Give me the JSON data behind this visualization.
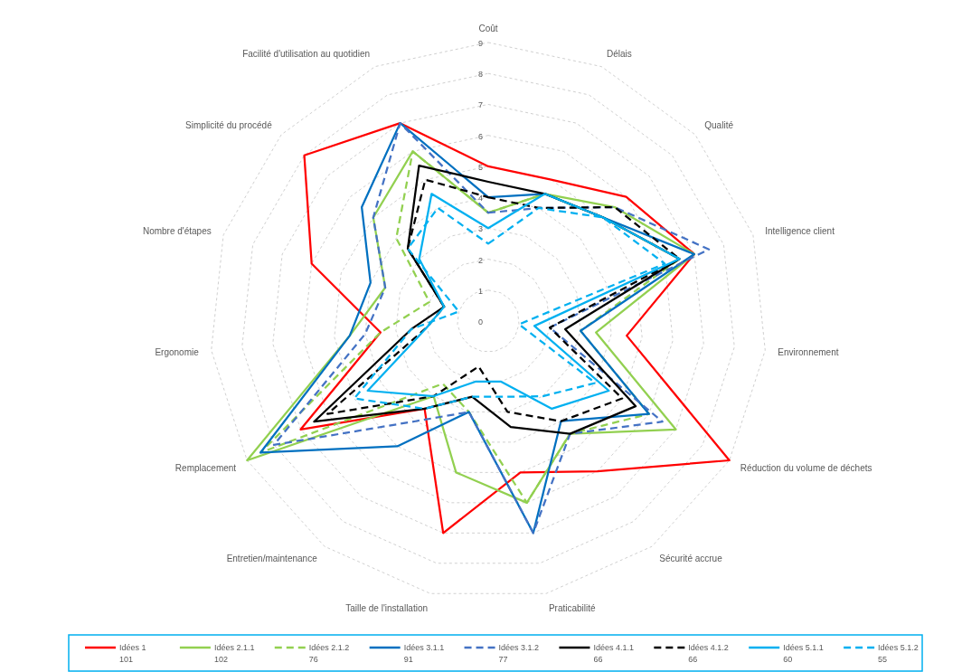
{
  "chart_data": {
    "type": "radar",
    "categories": [
      "Coût",
      "Délais",
      "Qualité",
      "Intelligence client",
      "Environnement",
      "Réduction du volume de déchets",
      "Sécurité accrue",
      "Praticabilité",
      "Taille de l'installation",
      "Entretien/maintenance",
      "Remplacement",
      "Ergonomie",
      "Nombre d'étapes",
      "Simplicité du procédé",
      "Facilité d'utilisation au quotidien"
    ],
    "ylim": [
      0,
      9
    ],
    "yticks": [
      0,
      1,
      2,
      3,
      4,
      5,
      6,
      7,
      8,
      9
    ],
    "grid": true,
    "legend": "bottom",
    "marker": "none",
    "line_style": "solid",
    "series": [
      {
        "name": "Idées 1\n101",
        "color": "#ff0000",
        "values": [
          5,
          5,
          6,
          7,
          4.5,
          9,
          6,
          5,
          7,
          3.5,
          7,
          3.5,
          6,
          8,
          7
        ]
      },
      {
        "name": "Idées 2.1.1\n102",
        "color": "#92d050",
        "values": [
          3.5,
          4.5,
          5.5,
          7,
          3.5,
          7,
          4.5,
          6,
          5,
          3,
          9,
          4.5,
          3.5,
          5,
          6
        ]
      },
      {
        "name": "Idées 2.1.2\n76",
        "color": "#92d050",
        "line_style": "dashed",
        "values": [
          3.5,
          4.5,
          5,
          6.5,
          3,
          6,
          4.5,
          6,
          3,
          2.5,
          8.5,
          3.5,
          2,
          4,
          6
        ]
      },
      {
        "name": "Idées 3.1.1\n91",
        "color": "#0070c0",
        "values": [
          4,
          4.5,
          5,
          7,
          3,
          6,
          4,
          7,
          3,
          5,
          8.5,
          4.5,
          4,
          5.5,
          7
        ]
      },
      {
        "name": "Idées 3.1.2\n77",
        "color": "#4472c4",
        "line_style": "dashed",
        "values": [
          3.5,
          4,
          5.5,
          7.5,
          2,
          6.5,
          4.5,
          7,
          3,
          4,
          8,
          4,
          3.5,
          5,
          7
        ]
      },
      {
        "name": "Idées 4.1.1\n66",
        "color": "#000000",
        "values": [
          4.5,
          4.5,
          5,
          6.5,
          2.5,
          5.5,
          4.5,
          3.5,
          2.5,
          3.5,
          6.5,
          2.5,
          1.5,
          3.5,
          5.5
        ]
      },
      {
        "name": "Idées 4.1.2\n66",
        "color": "#000000",
        "line_style": "dashed",
        "values": [
          4,
          4,
          5.5,
          6.5,
          2,
          5,
          4,
          3,
          1.5,
          3,
          6,
          2,
          1.5,
          3.5,
          5
        ]
      },
      {
        "name": "Idées 5.1.1\n60",
        "color": "#00b0f0",
        "values": [
          3,
          4.5,
          5,
          6.5,
          1.5,
          4.5,
          3.5,
          2,
          2,
          3,
          4.5,
          2,
          1.5,
          3,
          4.5
        ]
      },
      {
        "name": "Idées 5.1.2\n55",
        "color": "#00b0f0",
        "line_style": "dashed",
        "values": [
          2.5,
          4,
          5,
          6,
          1,
          4,
          3,
          2.5,
          2.5,
          3.5,
          5,
          2.5,
          1,
          3.5,
          4
        ]
      }
    ]
  }
}
